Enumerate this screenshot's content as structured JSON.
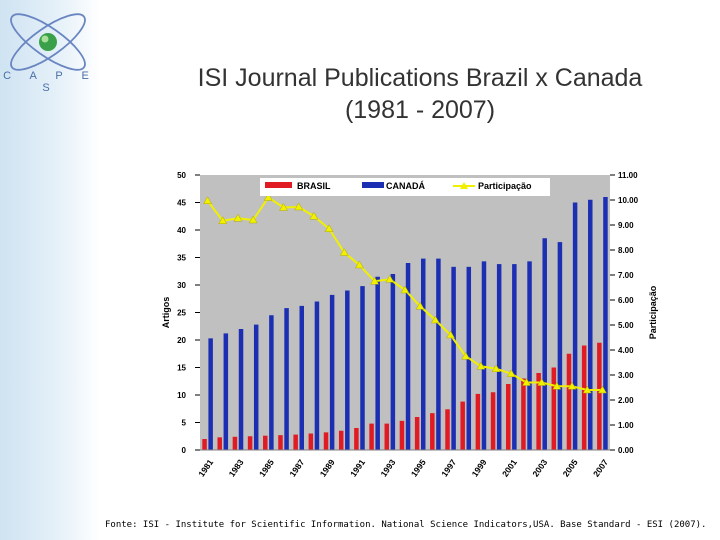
{
  "brand": {
    "logo_text": "C A P E S"
  },
  "title_line1": "ISI Journal Publications Brazil x Canada",
  "title_line2": "(1981 - 2007)",
  "source": "Fonte: ISI - Institute for Scientific Information. National Science Indicators,USA. Base Standard - ESI (2007).",
  "colors": {
    "brasil": "#e01b24",
    "canada": "#1c2fb3",
    "participacao": "#f0f000",
    "plot_bg": "#c0c0c0"
  },
  "chart_data": {
    "type": "bar",
    "title": "",
    "ylabel": "Artigos",
    "y2label": "Participação",
    "ylim": [
      0,
      50
    ],
    "y2lim": [
      0,
      11
    ],
    "yticks": [
      "0",
      "5",
      "10",
      "15",
      "20",
      "25",
      "30",
      "35",
      "40",
      "45",
      "50"
    ],
    "y2ticks": [
      "0.00",
      "1.00",
      "2.00",
      "3.00",
      "4.00",
      "5.00",
      "6.00",
      "7.00",
      "8.00",
      "9.00",
      "10.00",
      "11.00"
    ],
    "categories": [
      "1981",
      "1982",
      "1983",
      "1984",
      "1985",
      "1986",
      "1987",
      "1988",
      "1989",
      "1990",
      "1991",
      "1992",
      "1993",
      "1994",
      "1995",
      "1996",
      "1997",
      "1998",
      "1999",
      "2000",
      "2001",
      "2002",
      "2003",
      "2004",
      "2005",
      "2006",
      "2007"
    ],
    "xtick_labels": [
      "1981",
      "1983",
      "1985",
      "1987",
      "1989",
      "1991",
      "1993",
      "1995",
      "1997",
      "1999",
      "2001",
      "2003",
      "2005",
      "2007"
    ],
    "series": [
      {
        "name": "BRASIL",
        "type": "bar",
        "axis": "left",
        "values": [
          2.0,
          2.3,
          2.4,
          2.5,
          2.6,
          2.7,
          2.8,
          3.0,
          3.2,
          3.5,
          4.0,
          4.8,
          4.8,
          5.3,
          6.0,
          6.7,
          7.4,
          8.8,
          10.2,
          10.5,
          12.0,
          13.0,
          14.0,
          15.0,
          17.5,
          19.0,
          19.5
        ]
      },
      {
        "name": "CANADÁ",
        "type": "bar",
        "axis": "left",
        "values": [
          20.3,
          21.2,
          22.0,
          22.8,
          24.5,
          25.8,
          26.2,
          27.0,
          28.2,
          29.0,
          29.8,
          31.5,
          32.0,
          34.0,
          34.8,
          34.8,
          33.3,
          33.3,
          34.3,
          33.8,
          33.8,
          34.3,
          38.5,
          37.8,
          45.0,
          45.5,
          46.0
        ]
      },
      {
        "name": "Participação",
        "type": "line",
        "axis": "right",
        "values": [
          9.97,
          9.17,
          9.27,
          9.2,
          10.1,
          9.7,
          9.72,
          9.35,
          8.85,
          7.9,
          7.4,
          6.75,
          6.83,
          6.4,
          5.75,
          5.2,
          4.6,
          3.75,
          3.35,
          3.25,
          3.05,
          2.7,
          2.7,
          2.55,
          2.55,
          2.4,
          2.4
        ]
      }
    ],
    "legend": {
      "position": "top"
    }
  }
}
